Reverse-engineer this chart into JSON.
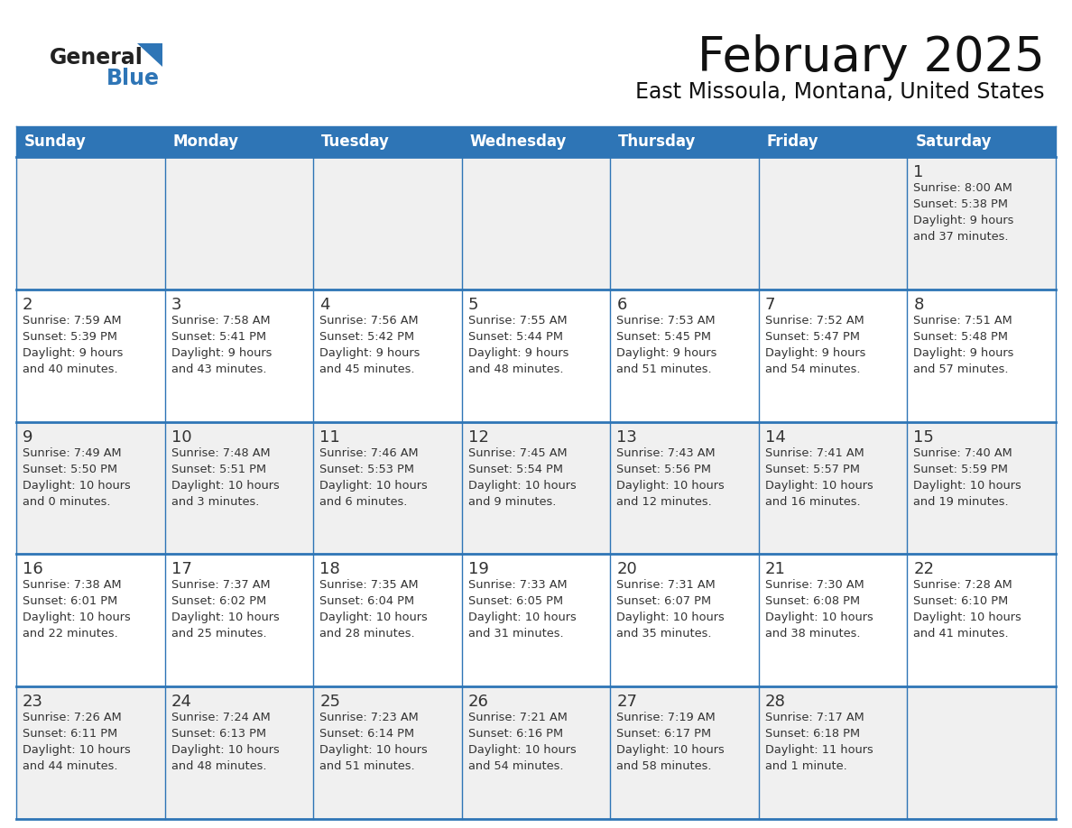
{
  "title": "February 2025",
  "subtitle": "East Missoula, Montana, United States",
  "header_bg": "#2E75B6",
  "header_text_color": "#FFFFFF",
  "header_days": [
    "Sunday",
    "Monday",
    "Tuesday",
    "Wednesday",
    "Thursday",
    "Friday",
    "Saturday"
  ],
  "cell_bg": "#FFFFFF",
  "cell_alt_bg": "#F0F0F0",
  "cell_border_color": "#2E75B6",
  "day_number_color": "#333333",
  "info_text_color": "#333333",
  "background_color": "#FFFFFF",
  "logo_general_color": "#222222",
  "logo_blue_color": "#2E75B6",
  "weeks": [
    [
      {
        "day": null,
        "info": null
      },
      {
        "day": null,
        "info": null
      },
      {
        "day": null,
        "info": null
      },
      {
        "day": null,
        "info": null
      },
      {
        "day": null,
        "info": null
      },
      {
        "day": null,
        "info": null
      },
      {
        "day": 1,
        "info": "Sunrise: 8:00 AM\nSunset: 5:38 PM\nDaylight: 9 hours\nand 37 minutes."
      }
    ],
    [
      {
        "day": 2,
        "info": "Sunrise: 7:59 AM\nSunset: 5:39 PM\nDaylight: 9 hours\nand 40 minutes."
      },
      {
        "day": 3,
        "info": "Sunrise: 7:58 AM\nSunset: 5:41 PM\nDaylight: 9 hours\nand 43 minutes."
      },
      {
        "day": 4,
        "info": "Sunrise: 7:56 AM\nSunset: 5:42 PM\nDaylight: 9 hours\nand 45 minutes."
      },
      {
        "day": 5,
        "info": "Sunrise: 7:55 AM\nSunset: 5:44 PM\nDaylight: 9 hours\nand 48 minutes."
      },
      {
        "day": 6,
        "info": "Sunrise: 7:53 AM\nSunset: 5:45 PM\nDaylight: 9 hours\nand 51 minutes."
      },
      {
        "day": 7,
        "info": "Sunrise: 7:52 AM\nSunset: 5:47 PM\nDaylight: 9 hours\nand 54 minutes."
      },
      {
        "day": 8,
        "info": "Sunrise: 7:51 AM\nSunset: 5:48 PM\nDaylight: 9 hours\nand 57 minutes."
      }
    ],
    [
      {
        "day": 9,
        "info": "Sunrise: 7:49 AM\nSunset: 5:50 PM\nDaylight: 10 hours\nand 0 minutes."
      },
      {
        "day": 10,
        "info": "Sunrise: 7:48 AM\nSunset: 5:51 PM\nDaylight: 10 hours\nand 3 minutes."
      },
      {
        "day": 11,
        "info": "Sunrise: 7:46 AM\nSunset: 5:53 PM\nDaylight: 10 hours\nand 6 minutes."
      },
      {
        "day": 12,
        "info": "Sunrise: 7:45 AM\nSunset: 5:54 PM\nDaylight: 10 hours\nand 9 minutes."
      },
      {
        "day": 13,
        "info": "Sunrise: 7:43 AM\nSunset: 5:56 PM\nDaylight: 10 hours\nand 12 minutes."
      },
      {
        "day": 14,
        "info": "Sunrise: 7:41 AM\nSunset: 5:57 PM\nDaylight: 10 hours\nand 16 minutes."
      },
      {
        "day": 15,
        "info": "Sunrise: 7:40 AM\nSunset: 5:59 PM\nDaylight: 10 hours\nand 19 minutes."
      }
    ],
    [
      {
        "day": 16,
        "info": "Sunrise: 7:38 AM\nSunset: 6:01 PM\nDaylight: 10 hours\nand 22 minutes."
      },
      {
        "day": 17,
        "info": "Sunrise: 7:37 AM\nSunset: 6:02 PM\nDaylight: 10 hours\nand 25 minutes."
      },
      {
        "day": 18,
        "info": "Sunrise: 7:35 AM\nSunset: 6:04 PM\nDaylight: 10 hours\nand 28 minutes."
      },
      {
        "day": 19,
        "info": "Sunrise: 7:33 AM\nSunset: 6:05 PM\nDaylight: 10 hours\nand 31 minutes."
      },
      {
        "day": 20,
        "info": "Sunrise: 7:31 AM\nSunset: 6:07 PM\nDaylight: 10 hours\nand 35 minutes."
      },
      {
        "day": 21,
        "info": "Sunrise: 7:30 AM\nSunset: 6:08 PM\nDaylight: 10 hours\nand 38 minutes."
      },
      {
        "day": 22,
        "info": "Sunrise: 7:28 AM\nSunset: 6:10 PM\nDaylight: 10 hours\nand 41 minutes."
      }
    ],
    [
      {
        "day": 23,
        "info": "Sunrise: 7:26 AM\nSunset: 6:11 PM\nDaylight: 10 hours\nand 44 minutes."
      },
      {
        "day": 24,
        "info": "Sunrise: 7:24 AM\nSunset: 6:13 PM\nDaylight: 10 hours\nand 48 minutes."
      },
      {
        "day": 25,
        "info": "Sunrise: 7:23 AM\nSunset: 6:14 PM\nDaylight: 10 hours\nand 51 minutes."
      },
      {
        "day": 26,
        "info": "Sunrise: 7:21 AM\nSunset: 6:16 PM\nDaylight: 10 hours\nand 54 minutes."
      },
      {
        "day": 27,
        "info": "Sunrise: 7:19 AM\nSunset: 6:17 PM\nDaylight: 10 hours\nand 58 minutes."
      },
      {
        "day": 28,
        "info": "Sunrise: 7:17 AM\nSunset: 6:18 PM\nDaylight: 11 hours\nand 1 minute."
      },
      {
        "day": null,
        "info": null
      }
    ]
  ]
}
